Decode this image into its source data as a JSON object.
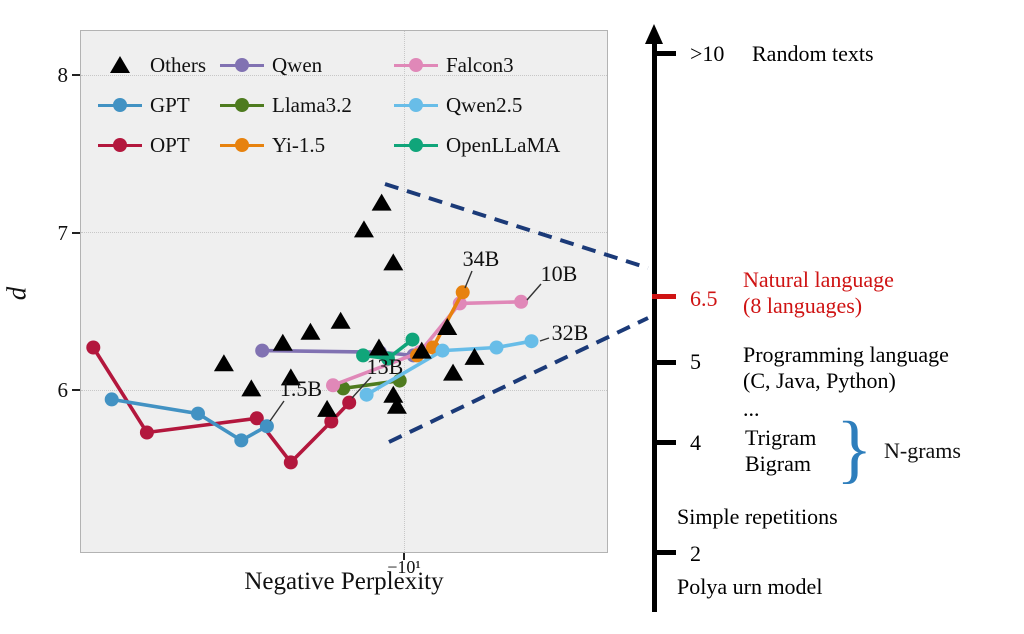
{
  "figure": {
    "xlabel": "Negative Perplexity",
    "ylabel": "d",
    "x_tick_label": "−10¹"
  },
  "legend": {
    "columns": [
      [
        {
          "label": "Others",
          "marker": "triangle",
          "color": "#000000"
        },
        {
          "label": "GPT",
          "marker": "line-dot",
          "color": "#4292c3"
        },
        {
          "label": "OPT",
          "marker": "line-dot",
          "color": "#b3173d"
        }
      ],
      [
        {
          "label": "Qwen",
          "marker": "line-dot",
          "color": "#8172b2"
        },
        {
          "label": "Llama3.2",
          "marker": "line-dot",
          "color": "#4e7b1f"
        },
        {
          "label": "Yi-1.5",
          "marker": "line-dot",
          "color": "#e7820e"
        }
      ],
      [
        {
          "label": "Falcon3",
          "marker": "line-dot",
          "color": "#e088b8"
        },
        {
          "label": "Qwen2.5",
          "marker": "line-dot",
          "color": "#68bde8"
        },
        {
          "label": "OpenLLaMA",
          "marker": "line-dot",
          "color": "#10a57a"
        }
      ]
    ]
  },
  "chart_data": {
    "type": "scatter",
    "title": "",
    "xlabel": "Negative Perplexity",
    "ylabel": "d",
    "x_axis": {
      "scale": "negative-log",
      "tick_values": [
        -10
      ],
      "tick_labels": [
        "−10¹"
      ],
      "approx_range": [
        -14.5,
        -8.0
      ]
    },
    "y_axis": {
      "ticks": [
        6,
        7,
        8
      ],
      "approx_range": [
        4.97,
        8.29
      ],
      "grid": "dotted"
    },
    "series": [
      {
        "name": "Others",
        "marker": "triangle",
        "line": false,
        "color": "#000000",
        "points": [
          [
            -10.25,
            7.19
          ],
          [
            -10.45,
            7.02
          ],
          [
            -10.12,
            6.81
          ],
          [
            -10.72,
            6.44
          ],
          [
            -11.08,
            6.37
          ],
          [
            -11.42,
            6.3
          ],
          [
            -12.18,
            6.17
          ],
          [
            -11.82,
            6.01
          ],
          [
            -11.32,
            6.08
          ],
          [
            -10.88,
            5.88
          ],
          [
            -10.28,
            6.27
          ],
          [
            -10.12,
            5.97
          ],
          [
            -10.08,
            5.9
          ],
          [
            -9.81,
            6.25
          ],
          [
            -9.54,
            6.4
          ],
          [
            -9.48,
            6.11
          ],
          [
            -9.26,
            6.21
          ]
        ]
      },
      {
        "name": "GPT",
        "marker": "circle",
        "line": true,
        "color": "#4292c3",
        "endpoint_label": "1.5B",
        "points": [
          [
            -13.77,
            5.94
          ],
          [
            -12.53,
            5.85
          ],
          [
            -11.95,
            5.68
          ],
          [
            -11.62,
            5.77
          ]
        ]
      },
      {
        "name": "OPT",
        "marker": "circle",
        "line": true,
        "color": "#b3173d",
        "endpoint_label": "13B",
        "points": [
          [
            -14.05,
            6.27
          ],
          [
            -13.25,
            5.73
          ],
          [
            -11.75,
            5.82
          ],
          [
            -11.32,
            5.54
          ],
          [
            -10.83,
            5.8
          ],
          [
            -10.62,
            5.92
          ]
        ]
      },
      {
        "name": "Qwen",
        "marker": "circle",
        "line": true,
        "color": "#8172b2",
        "points": [
          [
            -11.68,
            6.25
          ],
          [
            -10.27,
            6.24
          ],
          [
            -9.9,
            6.22
          ]
        ]
      },
      {
        "name": "Llama3.2",
        "marker": "circle",
        "line": true,
        "color": "#4e7b1f",
        "points": [
          [
            -10.69,
            6.01
          ],
          [
            -10.05,
            6.06
          ]
        ]
      },
      {
        "name": "Yi-1.5",
        "marker": "circle",
        "line": true,
        "color": "#e7820e",
        "endpoint_label": "34B",
        "points": [
          [
            -9.86,
            6.22
          ],
          [
            -9.69,
            6.27
          ],
          [
            -9.38,
            6.62
          ]
        ]
      },
      {
        "name": "Falcon3",
        "marker": "circle",
        "line": true,
        "color": "#e088b8",
        "endpoint_label": "10B",
        "points": [
          [
            -10.81,
            6.03
          ],
          [
            -9.83,
            6.24
          ],
          [
            -9.41,
            6.55
          ],
          [
            -8.8,
            6.56
          ]
        ]
      },
      {
        "name": "Qwen2.5",
        "marker": "circle",
        "line": true,
        "color": "#68bde8",
        "endpoint_label": "32B",
        "points": [
          [
            -10.42,
            5.97
          ],
          [
            -9.59,
            6.25
          ],
          [
            -9.04,
            6.27
          ],
          [
            -8.7,
            6.31
          ]
        ]
      },
      {
        "name": "OpenLLaMA",
        "marker": "circle",
        "line": true,
        "color": "#10a57a",
        "points": [
          [
            -10.46,
            6.22
          ],
          [
            -10.18,
            6.2
          ],
          [
            -9.91,
            6.32
          ]
        ]
      }
    ],
    "annotations": [
      {
        "text": "1.5B",
        "series": "GPT"
      },
      {
        "text": "13B",
        "series": "OPT"
      },
      {
        "text": "34B",
        "series": "Yi-1.5"
      },
      {
        "text": "10B",
        "series": "Falcon3"
      },
      {
        "text": "32B",
        "series": "Qwen2.5"
      }
    ],
    "dashed_wedge_color": "#1b3a78"
  },
  "right_scale": {
    "items": [
      {
        "value": ">10",
        "label_lines": [
          "Random texts"
        ],
        "color": "#000000",
        "tick": true
      },
      {
        "value": "6.5",
        "label_lines": [
          "Natural language",
          "(8 languages)"
        ],
        "color": "#cf1313",
        "tick": true
      },
      {
        "value": "5",
        "label_lines": [
          "Programming language",
          "(C, Java, Python)"
        ],
        "color": "#000000",
        "tick": true
      },
      {
        "value": "",
        "label_lines": [
          "..."
        ],
        "color": "#000000",
        "tick": false
      },
      {
        "value": "4",
        "label_lines": [
          "Trigram",
          "Bigram"
        ],
        "color": "#000000",
        "tick": true
      },
      {
        "value": "",
        "label_lines": [
          "Simple repetitions"
        ],
        "color": "#000000",
        "tick": false
      },
      {
        "value": "2",
        "label_lines": [],
        "color": "#000000",
        "tick": true
      },
      {
        "value": "",
        "label_lines": [
          "Polya urn model"
        ],
        "color": "#000000",
        "tick": false
      }
    ],
    "brace": {
      "glyph": "}",
      "label": "N-grams",
      "color": "#2e7ebc"
    }
  }
}
